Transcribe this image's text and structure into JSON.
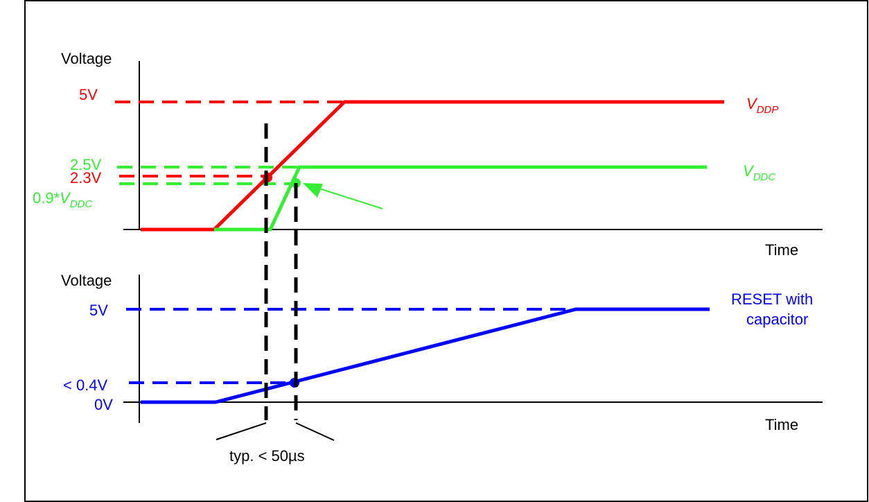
{
  "colors": {
    "vddp": "#ff0000",
    "vddc": "#33ee33",
    "reset": "#0000ff",
    "axis": "#000000",
    "marker": "#000000",
    "frame": "#000000"
  },
  "top_plot": {
    "y_axis_label": "Voltage",
    "x_axis_label": "Time",
    "levels": {
      "vddp_5v": "5V",
      "vddc_2_5v": "2.5V",
      "vddp_2_3v": "2.3V",
      "vddc_threshold_prefix": "0.9*",
      "vddc_threshold_v": "V",
      "vddc_threshold_sub": "DDC"
    },
    "series_labels": {
      "vddp_v": "V",
      "vddp_sub": "DDP",
      "vddc_v": "V",
      "vddc_sub": "DDC"
    }
  },
  "bottom_plot": {
    "y_axis_label": "Voltage",
    "x_axis_label": "Time",
    "levels": {
      "v5": "5V",
      "v04": "< 0.4V",
      "v0": "0V"
    },
    "series_label_line1": "RESET with",
    "series_label_line2": "capacitor"
  },
  "timing_annotation": "typ. < 50µs"
}
